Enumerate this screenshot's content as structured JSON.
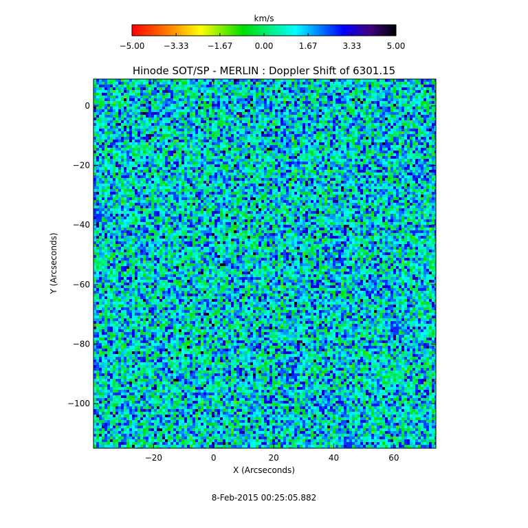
{
  "chart_data": {
    "type": "heatmap",
    "title": "Hinode SOT/SP - MERLIN : Doppler Shift of 6301.15",
    "xlabel": "X (Arcseconds)",
    "ylabel": "Y (Arcseconds)",
    "xlim": [
      -40,
      74
    ],
    "ylim": [
      -115,
      9
    ],
    "xticks": [
      -20,
      0,
      20,
      40,
      60
    ],
    "yticks": [
      0,
      -20,
      -40,
      -60,
      -80,
      -100
    ],
    "xtick_labels": [
      "−20",
      "0",
      "20",
      "40",
      "60"
    ],
    "ytick_labels": [
      "0",
      "−20",
      "−40",
      "−60",
      "−80",
      "−100"
    ],
    "colorbar": {
      "unit": "km/s",
      "range": [
        -5.0,
        5.0
      ],
      "ticks": [
        -5.0,
        -3.33,
        -1.67,
        0.0,
        1.67,
        3.33,
        5.0
      ],
      "tick_labels": [
        "−5.00",
        "−3.33",
        "−1.67",
        "0.00",
        "1.67",
        "3.33",
        "5.00"
      ],
      "colormap": "rainbow (red → yellow → green → cyan → blue → black)",
      "colors": [
        "#ff0000",
        "#ff8000",
        "#ffff00",
        "#00dd00",
        "#00ffff",
        "#0000ff",
        "#400080",
        "#000000"
      ]
    },
    "dominant_range_kms": [
      -0.8,
      2.8
    ],
    "grid": false
  },
  "footer": {
    "timestamp": "8-Feb-2015 00:25:05.882"
  }
}
